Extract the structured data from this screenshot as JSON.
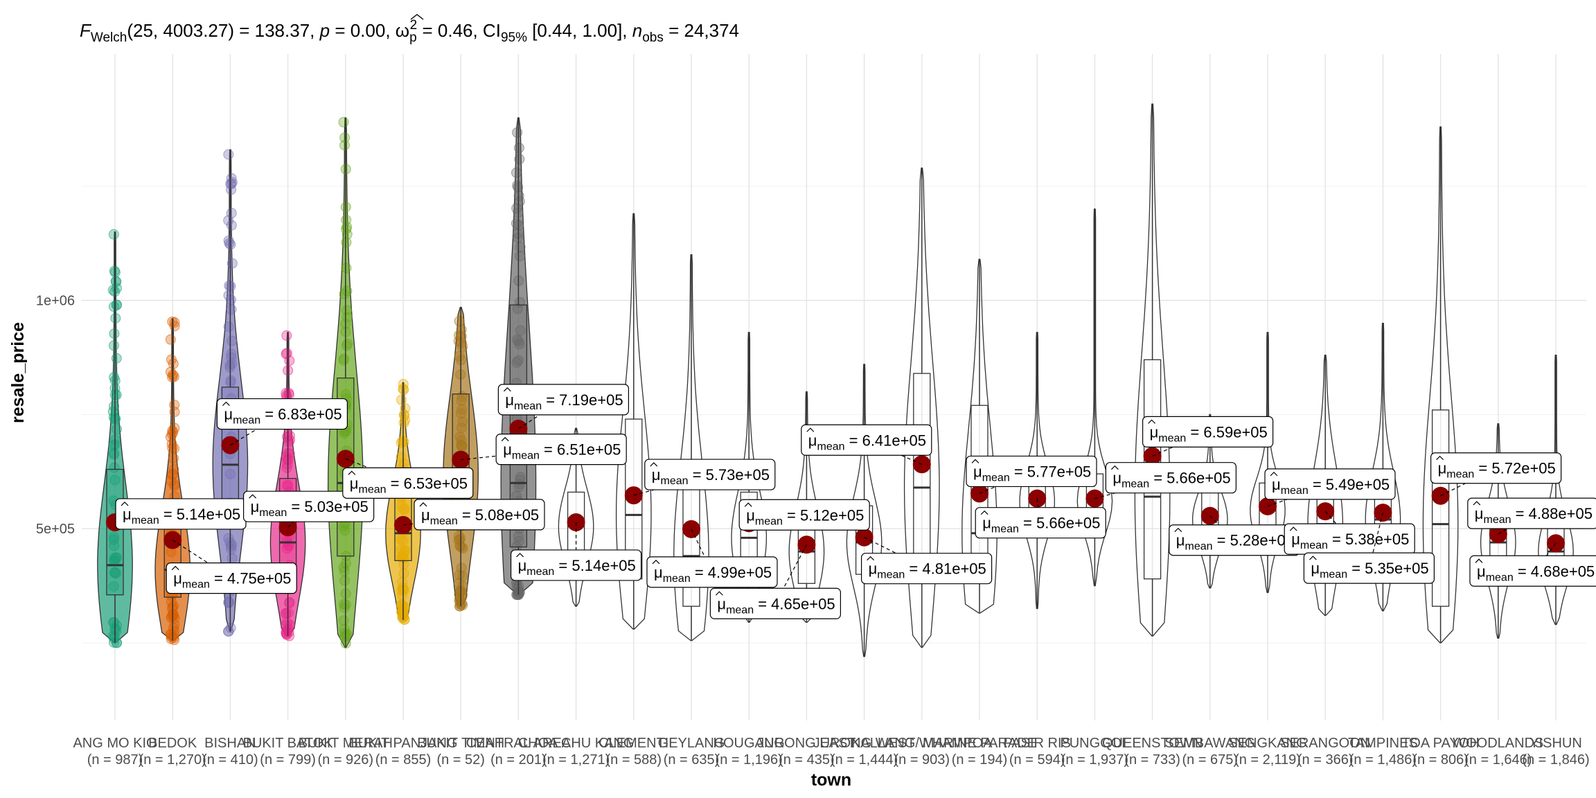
{
  "chart_data": {
    "type": "violin-box-scatter",
    "title": {
      "stat_symbol": "F",
      "stat_sub": "Welch",
      "stat_rest": "(25, 4003.27) = 138.37, ",
      "p_label": "p",
      "p_rest": " = 0.00, ",
      "effect_symbol": "ω",
      "effect_sub": "p",
      "effect_sup": "2",
      "effect_rest": " = 0.46, CI",
      "ci_sub": "95%",
      "ci_rest": " [0.44, 1.00], ",
      "n_label": "n",
      "n_sub": "obs",
      "n_rest": " = 24,374"
    },
    "xlabel": "town",
    "ylabel": "resale_price",
    "y_ticks": [
      {
        "value": 500000,
        "label": "5e+05"
      },
      {
        "value": 1000000,
        "label": "1e+06"
      }
    ],
    "ylim": [
      80000,
      1400000
    ],
    "mean_symbol": "μ",
    "mean_sub": "mean",
    "grid": true,
    "mean_color": "#8b0000",
    "towns": [
      {
        "name": "ANG MO KIO",
        "n": "(n = 987)",
        "mean": 514000,
        "mean_label": "5.14e+05",
        "min": 250000,
        "q1": 355000,
        "median": 420000,
        "q3": 630000,
        "max": 1150000,
        "color": "#1b9e77",
        "points": true,
        "label_dx": 95,
        "label_dy": -12
      },
      {
        "name": "BEDOK",
        "n": "(n = 1,270)",
        "mean": 475000,
        "mean_label": "4.75e+05",
        "min": 255000,
        "q1": 350000,
        "median": 410000,
        "q3": 560000,
        "max": 960000,
        "color": "#d95f02",
        "points": true,
        "label_dx": 85,
        "label_dy": 55
      },
      {
        "name": "BISHAN",
        "n": "(n = 410)",
        "mean": 683000,
        "mean_label": "6.83e+05",
        "min": 275000,
        "q1": 520000,
        "median": 640000,
        "q3": 810000,
        "max": 1330000,
        "color": "#7570b3",
        "points": true,
        "label_dx": 75,
        "label_dy": -45
      },
      {
        "name": "BUKIT BATOK",
        "n": "(n = 799)",
        "mean": 503000,
        "mean_label": "5.03e+05",
        "min": 265000,
        "q1": 410000,
        "median": 470000,
        "q3": 610000,
        "max": 930000,
        "color": "#e7298a",
        "points": true,
        "label_dx": 30,
        "label_dy": -30
      },
      {
        "name": "BUKIT MERAH",
        "n": "(n = 926)",
        "mean": 653000,
        "mean_label": "6.53e+05",
        "min": 240000,
        "q1": 440000,
        "median": 600000,
        "q3": 830000,
        "max": 1400000,
        "color": "#66a61e",
        "points": true,
        "label_dx": 90,
        "label_dy": 35
      },
      {
        "name": "BUKIT PANJANG",
        "n": "(n = 855)",
        "mean": 508000,
        "mean_label": "5.08e+05",
        "min": 300000,
        "q1": 430000,
        "median": 490000,
        "q3": 600000,
        "max": 820000,
        "color": "#e6ab02",
        "points": true,
        "label_dx": 110,
        "label_dy": -15
      },
      {
        "name": "BUKIT TIMAH",
        "n": "(n = 52)",
        "mean": 651000,
        "mean_label": "6.51e+05",
        "min": 330000,
        "q1": 530000,
        "median": 620000,
        "q3": 795000,
        "max": 985000,
        "color": "#a6761d",
        "points": true,
        "label_dx": 145,
        "label_dy": -15
      },
      {
        "name": "CENTRAL AREA",
        "n": "(n = 201)",
        "mean": 719000,
        "mean_label": "7.19e+05",
        "min": 355000,
        "q1": 460000,
        "median": 600000,
        "q3": 990000,
        "max": 1400000,
        "color": "#666666",
        "points": true,
        "label_dx": 65,
        "label_dy": -42
      },
      {
        "name": "CHOA CHU KANG",
        "n": "(n = 1,271)",
        "mean": 514000,
        "mean_label": "5.14e+05",
        "min": 330000,
        "q1": 450000,
        "median": 505000,
        "q3": 580000,
        "max": 720000,
        "color": "#ffffff",
        "points": false,
        "label_dx": 0,
        "label_dy": 62
      },
      {
        "name": "CLEMENTI",
        "n": "(n = 588)",
        "mean": 573000,
        "mean_label": "5.73e+05",
        "min": 280000,
        "q1": 390000,
        "median": 530000,
        "q3": 740000,
        "max": 1190000,
        "color": "#ffffff",
        "points": false,
        "label_dx": 110,
        "label_dy": -30
      },
      {
        "name": "GEYLANG",
        "n": "(n = 635)",
        "mean": 499000,
        "mean_label": "4.99e+05",
        "min": 255000,
        "q1": 330000,
        "median": 440000,
        "q3": 650000,
        "max": 1100000,
        "color": "#ffffff",
        "points": false,
        "label_dx": 30,
        "label_dy": 62
      },
      {
        "name": "HOUGANG",
        "n": "(n = 1,196)",
        "mean": 512000,
        "mean_label": "5.12e+05",
        "min": 295000,
        "q1": 420000,
        "median": 480000,
        "q3": 580000,
        "max": 930000,
        "color": "#ffffff",
        "points": false,
        "label_dx": 80,
        "label_dy": -12
      },
      {
        "name": "JURONG EAST",
        "n": "(n = 435)",
        "mean": 465000,
        "mean_label": "4.65e+05",
        "min": 295000,
        "q1": 380000,
        "median": 450000,
        "q3": 530000,
        "max": 800000,
        "color": "#ffffff",
        "points": false,
        "label_dx": -45,
        "label_dy": 85
      },
      {
        "name": "JURONG WEST",
        "n": "(n = 1,444)",
        "mean": 481000,
        "mean_label": "4.81e+05",
        "min": 220000,
        "q1": 400000,
        "median": 470000,
        "q3": 550000,
        "max": 860000,
        "color": "#ffffff",
        "points": false,
        "label_dx": 90,
        "label_dy": 45
      },
      {
        "name": "KALLANG/WHAMPOA",
        "n": "(n = 903)",
        "mean": 641000,
        "mean_label": "6.41e+05",
        "min": 240000,
        "q1": 410000,
        "median": 590000,
        "q3": 840000,
        "max": 1290000,
        "color": "#ffffff",
        "points": false,
        "label_dx": -80,
        "label_dy": -35
      },
      {
        "name": "MARINE PARADE",
        "n": "(n = 194)",
        "mean": 577000,
        "mean_label": "5.77e+05",
        "min": 315000,
        "q1": 410000,
        "median": 490000,
        "q3": 770000,
        "max": 1090000,
        "color": "#ffffff",
        "points": false,
        "label_dx": 75,
        "label_dy": -32
      },
      {
        "name": "PASIR RIS",
        "n": "(n = 594)",
        "mean": 566000,
        "mean_label": "5.66e+05",
        "min": 325000,
        "q1": 510000,
        "median": 560000,
        "q3": 630000,
        "max": 930000,
        "color": "#ffffff",
        "points": false,
        "label_dx": 5,
        "label_dy": 35
      },
      {
        "name": "PUNGGOL",
        "n": "(n = 1,937)",
        "mean": 566000,
        "mean_label": "5.66e+05",
        "min": 375000,
        "q1": 510000,
        "median": 560000,
        "q3": 620000,
        "max": 1200000,
        "color": "#ffffff",
        "points": false,
        "label_dx": 110,
        "label_dy": -30
      },
      {
        "name": "QUEENSTOWN",
        "n": "(n = 733)",
        "mean": 659000,
        "mean_label": "6.59e+05",
        "min": 265000,
        "q1": 390000,
        "median": 570000,
        "q3": 870000,
        "max": 1430000,
        "color": "#ffffff",
        "points": false,
        "label_dx": 80,
        "label_dy": -35
      },
      {
        "name": "SEMBAWANG",
        "n": "(n = 675)",
        "mean": 528000,
        "mean_label": "5.28e+05",
        "min": 370000,
        "q1": 480000,
        "median": 520000,
        "q3": 580000,
        "max": 750000,
        "color": "#ffffff",
        "points": false,
        "label_dx": 35,
        "label_dy": 35
      },
      {
        "name": "SENGKANG",
        "n": "(n = 2,119)",
        "mean": 549000,
        "mean_label": "5.49e+05",
        "min": 360000,
        "q1": 490000,
        "median": 540000,
        "q3": 600000,
        "max": 930000,
        "color": "#ffffff",
        "points": false,
        "label_dx": 90,
        "label_dy": -32
      },
      {
        "name": "SERANGOON",
        "n": "(n = 366)",
        "mean": 538000,
        "mean_label": "5.38e+05",
        "min": 310000,
        "q1": 430000,
        "median": 510000,
        "q3": 630000,
        "max": 880000,
        "color": "#ffffff",
        "points": false,
        "label_dx": 35,
        "label_dy": 40
      },
      {
        "name": "TAMPINES",
        "n": "(n = 1,486)",
        "mean": 535000,
        "mean_label": "5.35e+05",
        "min": 320000,
        "q1": 450000,
        "median": 520000,
        "q3": 610000,
        "max": 950000,
        "color": "#ffffff",
        "points": false,
        "label_dx": -20,
        "label_dy": 80
      },
      {
        "name": "TOA PAYOH",
        "n": "(n = 806)",
        "mean": 572000,
        "mean_label": "5.72e+05",
        "min": 250000,
        "q1": 330000,
        "median": 510000,
        "q3": 760000,
        "max": 1380000,
        "color": "#ffffff",
        "points": false,
        "label_dx": 80,
        "label_dy": -40
      },
      {
        "name": "WOODLANDS",
        "n": "(n = 1,646)",
        "mean": 488000,
        "mean_label": "4.88e+05",
        "min": 260000,
        "q1": 410000,
        "median": 470000,
        "q3": 540000,
        "max": 730000,
        "color": "#ffffff",
        "points": false,
        "label_dx": 50,
        "label_dy": -30
      },
      {
        "name": "YISHUN",
        "n": "(n = 1,846)",
        "mean": 468000,
        "mean_label": "4.68e+05",
        "min": 290000,
        "q1": 400000,
        "median": 450000,
        "q3": 520000,
        "max": 880000,
        "color": "#ffffff",
        "points": false,
        "label_dx": -30,
        "label_dy": 40
      }
    ]
  }
}
